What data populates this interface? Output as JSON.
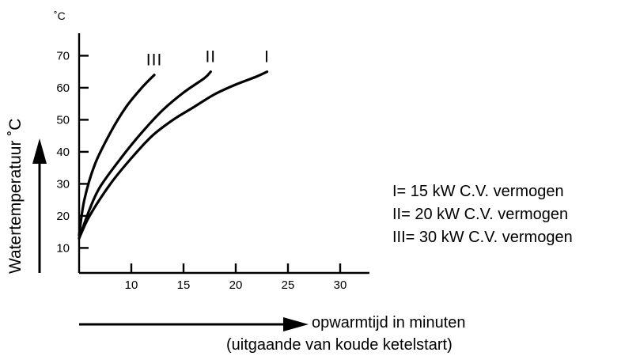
{
  "chart_data": {
    "type": "line",
    "yunit": "˚C",
    "ylabel": "Watertemperatuur ˚C",
    "xlabel_line1": "opwarmtijd in minuten",
    "xlabel_line2": "(uitgaande van koude ketelstart)",
    "xlim": [
      5,
      32
    ],
    "ylim": [
      0,
      75
    ],
    "xticks": [
      "10",
      "15",
      "20",
      "25",
      "30"
    ],
    "yticks": [
      "10",
      "20",
      "30",
      "40",
      "50",
      "60",
      "70"
    ],
    "series": [
      {
        "name": "I",
        "points": [
          [
            5,
            13
          ],
          [
            6,
            20
          ],
          [
            8,
            30
          ],
          [
            10,
            38
          ],
          [
            12,
            45
          ],
          [
            14,
            50
          ],
          [
            16,
            54
          ],
          [
            18,
            58
          ],
          [
            20,
            61
          ],
          [
            22,
            63.5
          ],
          [
            23,
            65
          ]
        ]
      },
      {
        "name": "II",
        "points": [
          [
            5,
            13
          ],
          [
            6,
            22
          ],
          [
            7,
            29
          ],
          [
            9,
            38
          ],
          [
            11,
            46
          ],
          [
            13,
            53
          ],
          [
            15,
            58.5
          ],
          [
            17,
            63
          ],
          [
            17.6,
            65
          ]
        ]
      },
      {
        "name": "III",
        "points": [
          [
            5,
            14
          ],
          [
            5.5,
            25
          ],
          [
            6.5,
            36
          ],
          [
            8,
            46
          ],
          [
            9.5,
            54
          ],
          [
            11,
            60
          ],
          [
            12.2,
            64
          ]
        ]
      }
    ],
    "legend": [
      "I= 15 kW C.V. vermogen",
      "II= 20 kW C.V. vermogen",
      "III= 30 kW C.V. vermogen"
    ]
  }
}
